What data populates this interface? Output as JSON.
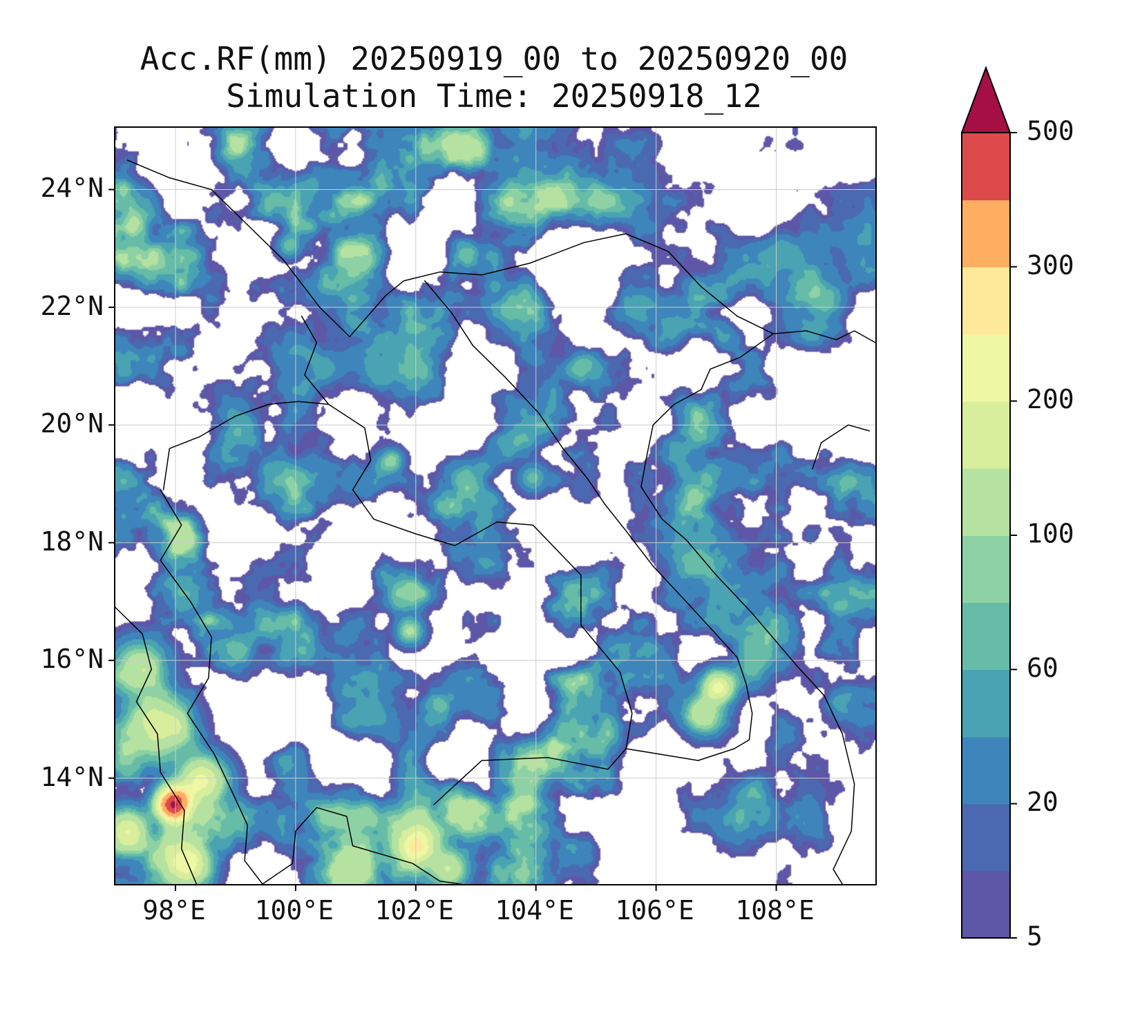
{
  "title": {
    "line1": "Acc.RF(mm) 20250919_00 to 20250920_00",
    "line2": "Simulation Time: 20250918_12"
  },
  "chart_data": {
    "type": "heatmap",
    "variable": "Acc.RF(mm)",
    "period_start": "20250919_00",
    "period_end": "20250920_00",
    "simulation_time": "20250918_12",
    "lon_range": [
      97.0,
      109.65
    ],
    "lat_range": [
      12.2,
      25.05
    ],
    "x_tick_lons": [
      98,
      100,
      102,
      104,
      106,
      108
    ],
    "x_tick_labels": [
      "98°E",
      "100°E",
      "102°E",
      "104°E",
      "106°E",
      "108°E"
    ],
    "y_tick_lats": [
      24,
      22,
      20,
      18,
      16,
      14
    ],
    "y_tick_labels": [
      "24°N",
      "22°N",
      "20°N",
      "18°N",
      "16°N",
      "14°N"
    ],
    "grid": true,
    "gridline_color": "#cccccc",
    "colorbar": {
      "levels": [
        5,
        10,
        20,
        40,
        60,
        80,
        100,
        150,
        200,
        250,
        300,
        400,
        500
      ],
      "tick_levels": [
        5,
        20,
        60,
        100,
        200,
        300,
        500
      ],
      "tick_labels": [
        "5",
        "20",
        "60",
        "100",
        "200",
        "300",
        "500"
      ],
      "colors": [
        "#5e56a6",
        "#4a69b0",
        "#3d85ba",
        "#4aa3b2",
        "#66bca7",
        "#8dd1a4",
        "#b5e2a1",
        "#d8ee9d",
        "#eef8a4",
        "#fee99b",
        "#fdae61",
        "#dd4a4c"
      ],
      "over_color": "#a50f44",
      "under_color": "#ffffff"
    },
    "hotspots": [
      [
        97.7,
        14.85,
        170,
        0.65
      ],
      [
        97.95,
        13.55,
        460,
        0.33
      ],
      [
        98.45,
        13.95,
        210,
        0.5
      ],
      [
        97.4,
        15.9,
        130,
        0.55
      ],
      [
        98.15,
        12.55,
        230,
        0.5
      ],
      [
        97.2,
        13.1,
        200,
        0.45
      ],
      [
        102.0,
        12.85,
        260,
        0.42
      ],
      [
        102.55,
        12.45,
        150,
        0.4
      ],
      [
        107.05,
        15.55,
        200,
        0.33
      ],
      [
        106.8,
        15.05,
        120,
        0.38
      ],
      [
        101.9,
        16.5,
        110,
        0.28
      ],
      [
        101.6,
        19.4,
        95,
        0.24
      ],
      [
        103.95,
        19.1,
        70,
        0.3
      ],
      [
        97.3,
        23.4,
        85,
        0.3
      ],
      [
        99.9,
        23.05,
        75,
        0.25
      ],
      [
        108.9,
        22.15,
        60,
        0.35
      ]
    ],
    "borders": [
      [
        [
          97.2,
          24.5
        ],
        [
          97.9,
          24.2
        ],
        [
          98.6,
          24.0
        ],
        [
          99.2,
          23.4
        ],
        [
          99.8,
          22.8
        ],
        [
          100.4,
          22.0
        ],
        [
          100.9,
          21.5
        ],
        [
          101.5,
          22.2
        ],
        [
          101.8,
          22.45
        ],
        [
          102.4,
          22.6
        ],
        [
          103.1,
          22.55
        ],
        [
          103.9,
          22.75
        ],
        [
          104.8,
          23.1
        ],
        [
          105.5,
          23.25
        ],
        [
          106.2,
          22.95
        ],
        [
          106.75,
          22.35
        ],
        [
          107.35,
          21.85
        ],
        [
          107.95,
          21.55
        ]
      ],
      [
        [
          107.95,
          21.55
        ],
        [
          107.4,
          21.15
        ],
        [
          106.9,
          20.95
        ],
        [
          106.75,
          20.6
        ],
        [
          106.3,
          20.35
        ],
        [
          105.95,
          20.0
        ],
        [
          105.85,
          19.5
        ],
        [
          105.75,
          18.95
        ],
        [
          106.1,
          18.4
        ],
        [
          106.5,
          18.05
        ],
        [
          107.0,
          17.45
        ],
        [
          107.6,
          16.8
        ],
        [
          108.1,
          16.2
        ],
        [
          108.35,
          15.9
        ],
        [
          108.8,
          15.4
        ],
        [
          109.1,
          14.75
        ],
        [
          109.3,
          13.9
        ],
        [
          109.25,
          13.1
        ],
        [
          108.95,
          12.45
        ],
        [
          109.1,
          12.2
        ]
      ],
      [
        [
          102.15,
          22.45
        ],
        [
          102.6,
          21.9
        ],
        [
          102.95,
          21.35
        ],
        [
          103.5,
          20.8
        ],
        [
          104.05,
          20.2
        ],
        [
          104.45,
          19.6
        ],
        [
          104.85,
          19.1
        ],
        [
          105.15,
          18.65
        ],
        [
          105.5,
          18.2
        ],
        [
          105.95,
          17.6
        ],
        [
          106.5,
          17.0
        ],
        [
          106.95,
          16.5
        ],
        [
          107.35,
          16.05
        ],
        [
          107.5,
          15.6
        ],
        [
          107.6,
          15.1
        ],
        [
          107.55,
          14.65
        ]
      ],
      [
        [
          100.1,
          21.85
        ],
        [
          100.35,
          21.4
        ],
        [
          100.15,
          20.85
        ],
        [
          100.55,
          20.35
        ],
        [
          101.15,
          19.95
        ],
        [
          101.25,
          19.4
        ],
        [
          100.95,
          18.9
        ],
        [
          101.3,
          18.4
        ],
        [
          102.0,
          18.15
        ],
        [
          102.65,
          17.95
        ],
        [
          103.35,
          18.35
        ],
        [
          103.95,
          18.3
        ],
        [
          104.75,
          17.45
        ],
        [
          104.75,
          16.6
        ],
        [
          105.4,
          15.8
        ],
        [
          105.6,
          15.1
        ],
        [
          105.5,
          14.5
        ]
      ],
      [
        [
          102.3,
          13.55
        ],
        [
          103.1,
          14.3
        ],
        [
          104.2,
          14.35
        ],
        [
          105.2,
          14.15
        ],
        [
          105.5,
          14.5
        ],
        [
          106.1,
          14.4
        ],
        [
          106.7,
          14.3
        ],
        [
          107.3,
          14.5
        ],
        [
          107.55,
          14.65
        ]
      ],
      [
        [
          97.75,
          18.9
        ],
        [
          98.1,
          18.3
        ],
        [
          97.75,
          17.7
        ],
        [
          98.25,
          17.0
        ],
        [
          98.6,
          16.4
        ],
        [
          98.55,
          15.7
        ],
        [
          98.2,
          15.1
        ],
        [
          98.65,
          14.4
        ],
        [
          98.95,
          13.75
        ],
        [
          99.2,
          13.2
        ],
        [
          99.15,
          12.6
        ],
        [
          99.45,
          12.2
        ]
      ],
      [
        [
          97.0,
          16.9
        ],
        [
          97.45,
          16.45
        ],
        [
          97.6,
          15.85
        ],
        [
          97.35,
          15.3
        ],
        [
          97.7,
          14.75
        ],
        [
          97.75,
          14.1
        ],
        [
          98.15,
          13.45
        ],
        [
          98.1,
          12.8
        ],
        [
          98.35,
          12.2
        ]
      ],
      [
        [
          99.45,
          12.2
        ],
        [
          99.95,
          12.55
        ],
        [
          100.0,
          13.1
        ],
        [
          100.35,
          13.5
        ],
        [
          100.85,
          13.35
        ],
        [
          100.95,
          12.85
        ],
        [
          101.45,
          12.7
        ],
        [
          101.95,
          12.55
        ],
        [
          102.4,
          12.25
        ],
        [
          102.75,
          12.2
        ]
      ],
      [
        [
          97.8,
          18.9
        ],
        [
          97.9,
          19.6
        ],
        [
          98.4,
          19.8
        ],
        [
          99.0,
          20.15
        ],
        [
          99.55,
          20.35
        ],
        [
          100.05,
          20.4
        ],
        [
          100.55,
          20.35
        ]
      ],
      [
        [
          108.6,
          19.25
        ],
        [
          108.75,
          19.7
        ],
        [
          109.2,
          20.0
        ],
        [
          109.55,
          19.9
        ]
      ],
      [
        [
          107.95,
          21.55
        ],
        [
          108.5,
          21.6
        ],
        [
          109.0,
          21.45
        ],
        [
          109.3,
          21.6
        ],
        [
          109.65,
          21.4
        ]
      ]
    ]
  }
}
